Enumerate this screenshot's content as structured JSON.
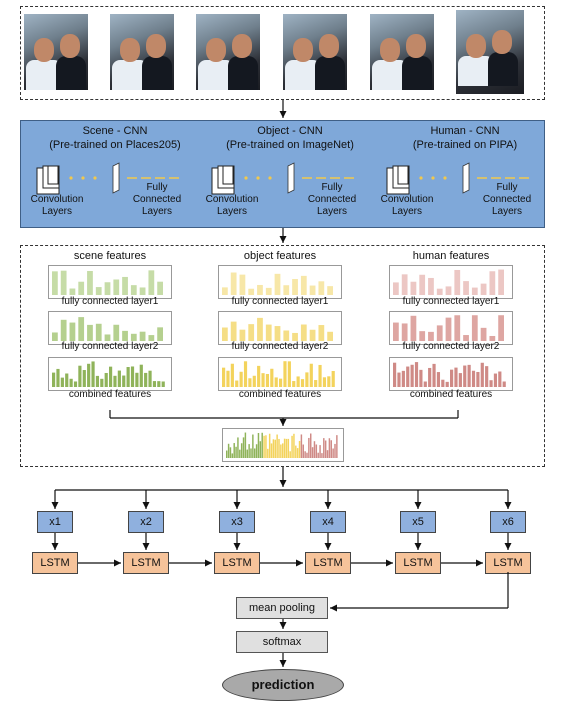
{
  "cnn": [
    {
      "name": "Scene - CNN",
      "pretrain": "(Pre-trained on Places205)"
    },
    {
      "name": "Object - CNN",
      "pretrain": "(Pre-trained on ImageNet)"
    },
    {
      "name": "Human - CNN",
      "pretrain": "(Pre-trained on PIPA)"
    }
  ],
  "conv_label_1": "Convolution",
  "conv_label_2": "Layers",
  "fc_label_1": "Fully",
  "fc_label_2": "Connected",
  "fc_label_3": "Layers",
  "features": [
    {
      "title": "scene features",
      "color": "#8fb35a",
      "light": "#c6dca7"
    },
    {
      "title": "object features",
      "color": "#f3d35c",
      "light": "#f7e7a8"
    },
    {
      "title": "human features",
      "color": "#cf8a86",
      "light": "#ecc7c4"
    }
  ],
  "fc1_label": "fully connected layer1",
  "fc2_label": "fully connected layer2",
  "combined_label": "combined features",
  "inputs": [
    "x1",
    "x2",
    "x3",
    "x4",
    "x5",
    "x6"
  ],
  "lstm_label": "LSTM",
  "mean_pooling": "mean pooling",
  "softmax": "softmax",
  "prediction": "prediction"
}
